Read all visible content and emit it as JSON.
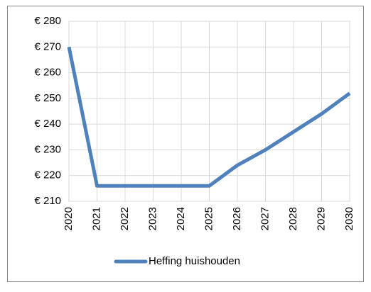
{
  "chart_data": {
    "type": "line",
    "categories": [
      "2020",
      "2021",
      "2022",
      "2023",
      "2024",
      "2025",
      "2026",
      "2027",
      "2028",
      "2029",
      "2030"
    ],
    "series": [
      {
        "name": "Heffing huishouden",
        "color": "#4f81bd",
        "values": [
          270,
          216,
          216,
          216,
          216,
          216,
          224,
          230,
          237,
          244,
          252
        ]
      }
    ],
    "ylim": [
      210,
      280
    ],
    "yticks": [
      {
        "value": 210,
        "label": "€ 210"
      },
      {
        "value": 220,
        "label": "€ 220"
      },
      {
        "value": 230,
        "label": "€ 230"
      },
      {
        "value": 240,
        "label": "€ 240"
      },
      {
        "value": 250,
        "label": "€ 250"
      },
      {
        "value": 260,
        "label": "€ 260"
      },
      {
        "value": 270,
        "label": "€ 270"
      },
      {
        "value": 280,
        "label": "€ 280"
      }
    ],
    "grid": true,
    "legend": "bottom"
  }
}
